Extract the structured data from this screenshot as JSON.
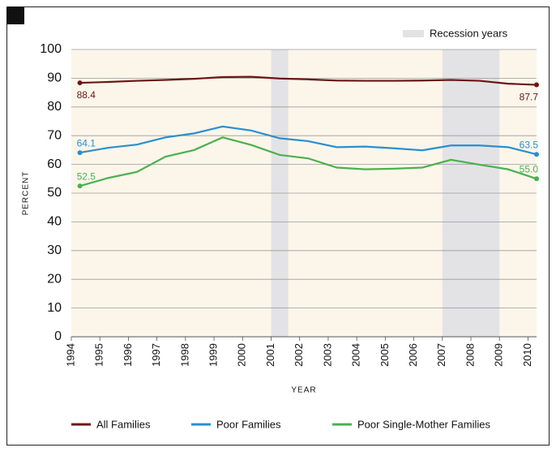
{
  "chart_data": {
    "type": "line",
    "x_label": "YEAR",
    "y_label": "PERCENT",
    "x": [
      1994.3,
      1995.3,
      1996.3,
      1997.3,
      1998.3,
      1999.3,
      2000.3,
      2001.3,
      2002.3,
      2003.3,
      2004.3,
      2005.3,
      2006.3,
      2007.3,
      2008.3,
      2009.3,
      2010.3
    ],
    "xlim": [
      1994,
      2010.3
    ],
    "xticks": [
      1994,
      1995,
      1996,
      1997,
      1998,
      1999,
      2000,
      2001,
      2002,
      2003,
      2004,
      2005,
      2006,
      2007,
      2008,
      2009,
      2010
    ],
    "ylim": [
      0,
      100
    ],
    "yticks": [
      0,
      10,
      20,
      30,
      40,
      50,
      60,
      70,
      80,
      90,
      100
    ],
    "grid": true,
    "legend": "bottom",
    "recession_label": "Recession years",
    "recession_color": "#e3e3e6",
    "recessions": [
      [
        2001,
        2001.6
      ],
      [
        2007,
        2009
      ]
    ],
    "series": [
      {
        "name": "All Families",
        "color": "#6b1616",
        "values": [
          88.4,
          88.7,
          89.1,
          89.4,
          89.8,
          90.4,
          90.5,
          89.9,
          89.6,
          89.2,
          89.1,
          89.1,
          89.2,
          89.4,
          89.1,
          88.1,
          87.7
        ],
        "value_labels": [
          "88.4",
          null,
          null,
          null,
          null,
          null,
          null,
          null,
          null,
          null,
          null,
          null,
          null,
          null,
          null,
          null,
          "87.7"
        ]
      },
      {
        "name": "Poor Families",
        "color": "#2a8fcf",
        "values": [
          64.1,
          65.8,
          66.9,
          69.4,
          70.8,
          73.2,
          71.8,
          69.1,
          68.1,
          66.0,
          66.2,
          65.6,
          64.9,
          66.6,
          66.6,
          66.0,
          63.5
        ],
        "value_labels": [
          "64.1",
          null,
          null,
          null,
          null,
          null,
          null,
          null,
          null,
          null,
          null,
          null,
          null,
          null,
          null,
          null,
          "63.5"
        ]
      },
      {
        "name": "Poor Single-Mother Families",
        "color": "#4cb050",
        "values": [
          52.5,
          55.3,
          57.4,
          62.7,
          65.0,
          69.4,
          66.8,
          63.3,
          62.1,
          58.9,
          58.3,
          58.5,
          58.9,
          61.6,
          59.9,
          58.3,
          55.0
        ],
        "value_labels": [
          "52.5",
          null,
          null,
          null,
          null,
          null,
          null,
          null,
          null,
          null,
          null,
          null,
          null,
          null,
          null,
          null,
          "55.0"
        ]
      }
    ]
  }
}
